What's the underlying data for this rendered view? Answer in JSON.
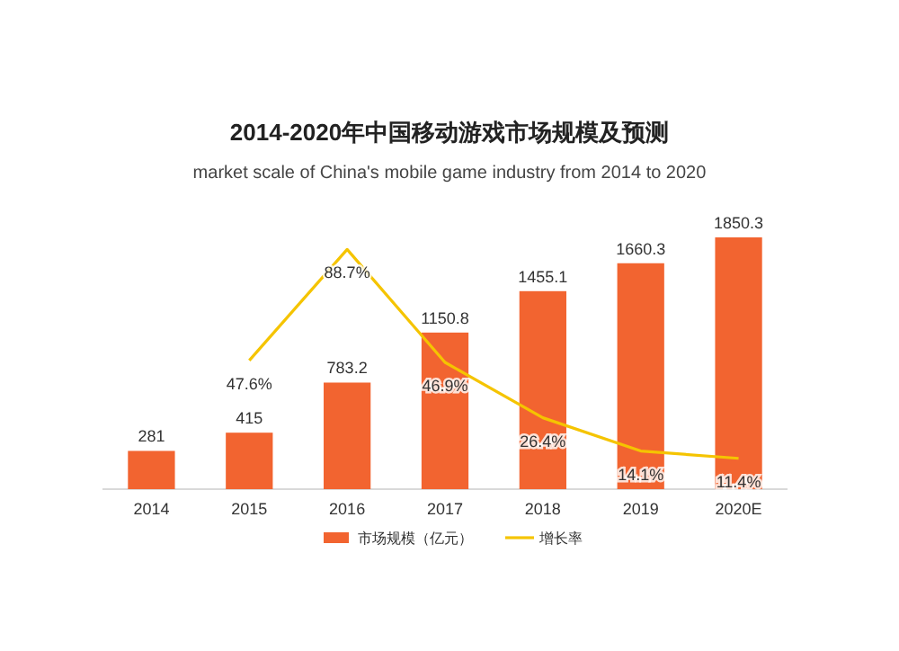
{
  "chart_data": {
    "type": "bar",
    "title": "2014-2020年中国移动游戏市场规模及预测",
    "subtitle": "market scale of China's mobile game industry from 2014 to 2020",
    "categories": [
      "2014",
      "2015",
      "2016",
      "2017",
      "2018",
      "2019",
      "2020E"
    ],
    "series": [
      {
        "name": "市场规模（亿元）",
        "color": "#f26430",
        "values": [
          281,
          415,
          783.2,
          1150.8,
          1455.1,
          1660.3,
          1850.3
        ],
        "value_labels": [
          "281",
          "415",
          "783.2",
          "1150.8",
          "1455.1",
          "1660.3",
          "1850.3"
        ]
      },
      {
        "name": "增长率",
        "type": "line",
        "axis": "y2",
        "color": "#f5c400",
        "marker": "none",
        "values": [
          null,
          47.6,
          88.7,
          46.9,
          26.4,
          14.1,
          11.4
        ],
        "value_labels": [
          null,
          "47.6%",
          "88.7%",
          "46.9%",
          "26.4%",
          "14.1%",
          "11.4%"
        ]
      }
    ],
    "legend": "bottom",
    "grid": false
  }
}
